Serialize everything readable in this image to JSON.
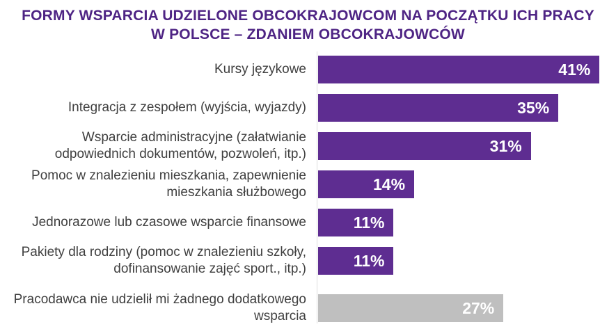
{
  "title": {
    "lines": [
      "FORMY WSPARCIA UDZIELONE OBCOKRAJOWCOM NA POCZĄTKU ICH PRACY",
      "W POLSCE – ZDANIEM OBCOKRAJOWCÓW"
    ]
  },
  "chart_data": {
    "type": "bar",
    "orientation": "horizontal",
    "title": "FORMY WSPARCIA UDZIELONE OBCOKRAJOWCOM NA POCZĄTKU ICH PRACY W POLSCE – ZDANIEM OBCOKRAJOWCÓW",
    "categories": [
      "Kursy językowe",
      "Integracja z zespołem (wyjścia, wyjazdy)",
      "Wsparcie administracyjne (załatwianie odpowiednich dokumentów, pozwoleń, itp.)",
      "Pomoc w znalezieniu mieszkania, zapewnienie mieszkania służbowego",
      "Jednorazowe lub czasowe wsparcie finansowe",
      "Pakiety dla rodziny (pomoc w znalezieniu szkoły, dofinansowanie zajęć sport., itp.)",
      "Pracodawca nie udzielił mi żadnego dodatkowego wsparcia"
    ],
    "values": [
      41,
      35,
      31,
      14,
      11,
      11,
      27
    ],
    "value_labels": [
      "41%",
      "35%",
      "31%",
      "14%",
      "11%",
      "11%",
      "27%"
    ],
    "bar_colors": [
      "#5E2D91",
      "#5E2D91",
      "#5E2D91",
      "#5E2D91",
      "#5E2D91",
      "#5E2D91",
      "#BFBFBF"
    ],
    "xlim": [
      0,
      43.4
    ],
    "grid": false,
    "legend": "none",
    "colors": {
      "bar_purple": "#5E2D91",
      "bar_gray": "#BFBFBF",
      "title_text": "#4E2484",
      "category_text": "#3f3f3f",
      "value_text": "#ffffff",
      "axis_line": "#dcdcdc"
    }
  }
}
